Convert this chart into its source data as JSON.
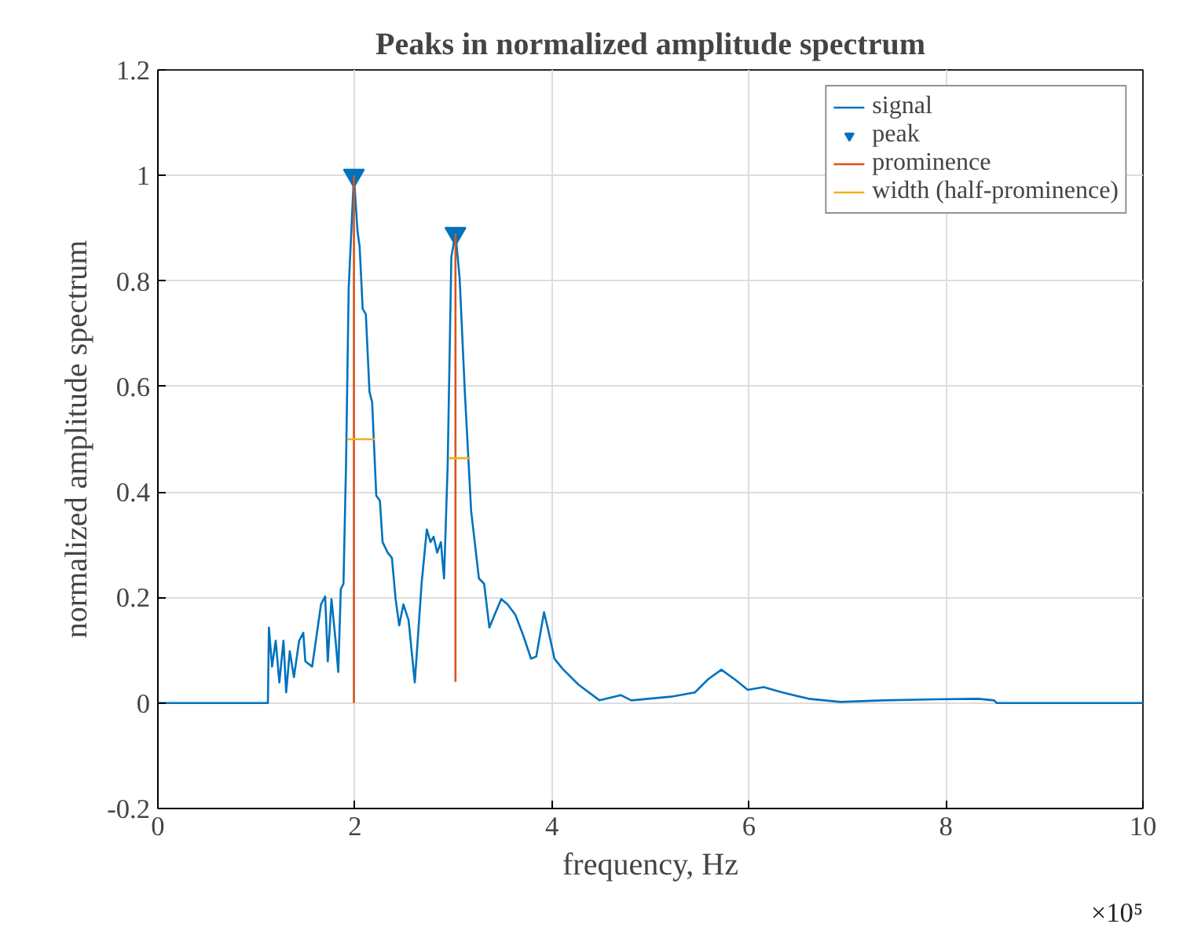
{
  "chart_data": {
    "type": "line",
    "title": "Peaks in normalized amplitude spectrum",
    "xlabel": "frequency, Hz",
    "ylabel": "normalized amplitude spectrum",
    "annotations": [
      "×10⁵"
    ],
    "xlim": [
      0,
      10
    ],
    "ylim": [
      -0.2,
      1.2
    ],
    "xticks": [
      0,
      2,
      4,
      6,
      8,
      10
    ],
    "yticks": [
      -0.2,
      0,
      0.2,
      0.4,
      0.6,
      0.8,
      1,
      1.2
    ],
    "grid": true,
    "legend": "top right",
    "series": [
      {
        "name": "signal",
        "color": "#0072bd",
        "x": [
          0,
          1.117,
          1.127,
          1.159,
          1.196,
          1.233,
          1.275,
          1.302,
          1.339,
          1.381,
          1.434,
          1.476,
          1.497,
          1.566,
          1.619,
          1.656,
          1.698,
          1.725,
          1.762,
          1.804,
          1.831,
          1.857,
          1.884,
          1.91,
          1.937,
          1.99,
          2.026,
          2.048,
          2.079,
          2.111,
          2.148,
          2.175,
          2.217,
          2.254,
          2.281,
          2.333,
          2.376,
          2.413,
          2.45,
          2.492,
          2.545,
          2.608,
          2.677,
          2.73,
          2.767,
          2.799,
          2.836,
          2.873,
          2.905,
          2.942,
          2.979,
          3.021,
          3.063,
          3.116,
          3.18,
          3.259,
          3.312,
          3.365,
          3.418,
          3.486,
          3.55,
          3.629,
          3.709,
          3.788,
          3.841,
          3.92,
          3.963,
          4.026,
          4.108,
          4.269,
          4.484,
          4.699,
          4.806,
          5.21,
          5.452,
          5.586,
          5.72,
          5.855,
          5.989,
          6.15,
          6.339,
          6.607,
          6.93,
          7.36,
          7.898,
          8.328,
          8.489,
          8.516,
          10
        ],
        "values": [
          0,
          0,
          0.143,
          0.069,
          0.118,
          0.039,
          0.118,
          0.02,
          0.098,
          0.049,
          0.118,
          0.133,
          0.079,
          0.069,
          0.138,
          0.187,
          0.202,
          0.079,
          0.197,
          0.118,
          0.059,
          0.216,
          0.226,
          0.452,
          0.787,
          1.0,
          0.895,
          0.865,
          0.747,
          0.737,
          0.59,
          0.57,
          0.393,
          0.383,
          0.305,
          0.285,
          0.275,
          0.197,
          0.147,
          0.187,
          0.157,
          0.039,
          0.226,
          0.329,
          0.305,
          0.315,
          0.285,
          0.305,
          0.236,
          0.452,
          0.846,
          0.89,
          0.806,
          0.59,
          0.364,
          0.236,
          0.226,
          0.143,
          0.167,
          0.197,
          0.187,
          0.167,
          0.128,
          0.084,
          0.088,
          0.172,
          0.138,
          0.084,
          0.065,
          0.035,
          0.005,
          0.015,
          0.005,
          0.012,
          0.02,
          0.045,
          0.063,
          0.045,
          0.025,
          0.03,
          0.02,
          0.008,
          0.002,
          0.005,
          0.007,
          0.008,
          0.005,
          0,
          0
        ]
      },
      {
        "name": "peak",
        "type": "scatter",
        "marker": "triangle",
        "color": "#0072bd",
        "x": [
          1.99,
          3.021
        ],
        "values": [
          1.0,
          0.89
        ]
      },
      {
        "name": "prominence",
        "type": "line",
        "color": "#d95319",
        "x": [
          1.99,
          1.99,
          null,
          3.021,
          3.021
        ],
        "values": [
          0,
          1.0,
          null,
          0.04,
          0.89
        ]
      },
      {
        "name": "width (half-prominence)",
        "type": "line",
        "color": "#edb120",
        "x": [
          1.92,
          2.206,
          null,
          2.952,
          3.169
        ],
        "values": [
          0.5,
          0.5,
          null,
          0.464,
          0.464
        ]
      }
    ]
  }
}
